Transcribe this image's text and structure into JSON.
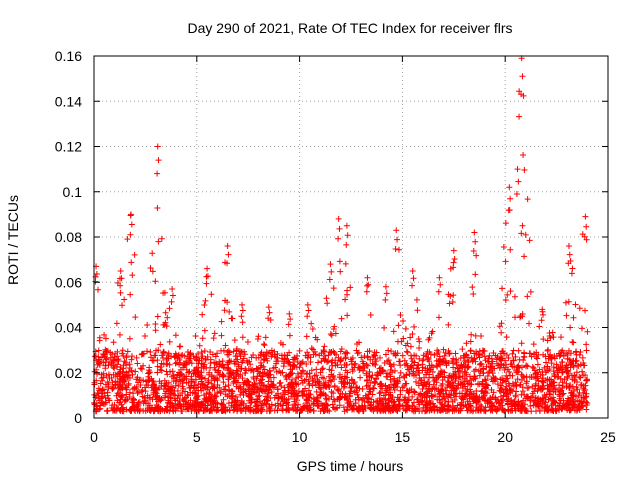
{
  "chart_data": {
    "type": "scatter",
    "title": "Day 290 of 2021, Rate Of TEC Index for receiver flrs",
    "xlabel": "GPS time / hours",
    "ylabel": "ROTI / TECUs",
    "xlim": [
      0,
      25
    ],
    "ylim": [
      0,
      0.16
    ],
    "grid": true,
    "marker": "+",
    "color": "#ff0000",
    "x_ticks": [
      0,
      5,
      10,
      15,
      20,
      25
    ],
    "x_tick_labels": [
      "0",
      "5",
      "10",
      "15",
      "20",
      "25"
    ],
    "y_ticks": [
      0,
      0.02,
      0.04,
      0.06,
      0.08,
      0.1,
      0.12,
      0.14,
      0.16
    ],
    "y_tick_labels": [
      "0",
      "0.02",
      "0.04",
      "0.06",
      "0.08",
      "0.1",
      "0.12",
      "0.14",
      "0.16"
    ],
    "series": [
      {
        "name": "ROTI",
        "time_range_hours": [
          0,
          24
        ],
        "typical_band": [
          0.003,
          0.03
        ],
        "noise_seed": 290,
        "activity_peaks": [
          {
            "x": 0.1,
            "y": 0.067
          },
          {
            "x": 1.3,
            "y": 0.065
          },
          {
            "x": 1.8,
            "y": 0.09
          },
          {
            "x": 3.1,
            "y": 0.12
          },
          {
            "x": 3.8,
            "y": 0.057
          },
          {
            "x": 5.5,
            "y": 0.066
          },
          {
            "x": 6.5,
            "y": 0.076
          },
          {
            "x": 7.2,
            "y": 0.05
          },
          {
            "x": 8.5,
            "y": 0.049
          },
          {
            "x": 9.5,
            "y": 0.046
          },
          {
            "x": 10.4,
            "y": 0.05
          },
          {
            "x": 11.5,
            "y": 0.068
          },
          {
            "x": 11.9,
            "y": 0.088
          },
          {
            "x": 12.3,
            "y": 0.085
          },
          {
            "x": 13.3,
            "y": 0.062
          },
          {
            "x": 14.2,
            "y": 0.058
          },
          {
            "x": 14.7,
            "y": 0.083
          },
          {
            "x": 15.5,
            "y": 0.065
          },
          {
            "x": 16.8,
            "y": 0.062
          },
          {
            "x": 17.5,
            "y": 0.074
          },
          {
            "x": 18.5,
            "y": 0.082
          },
          {
            "x": 20.2,
            "y": 0.102
          },
          {
            "x": 20.6,
            "y": 0.11
          },
          {
            "x": 20.8,
            "y": 0.159
          },
          {
            "x": 21.8,
            "y": 0.048
          },
          {
            "x": 23.1,
            "y": 0.076
          },
          {
            "x": 23.9,
            "y": 0.089
          }
        ]
      }
    ]
  }
}
